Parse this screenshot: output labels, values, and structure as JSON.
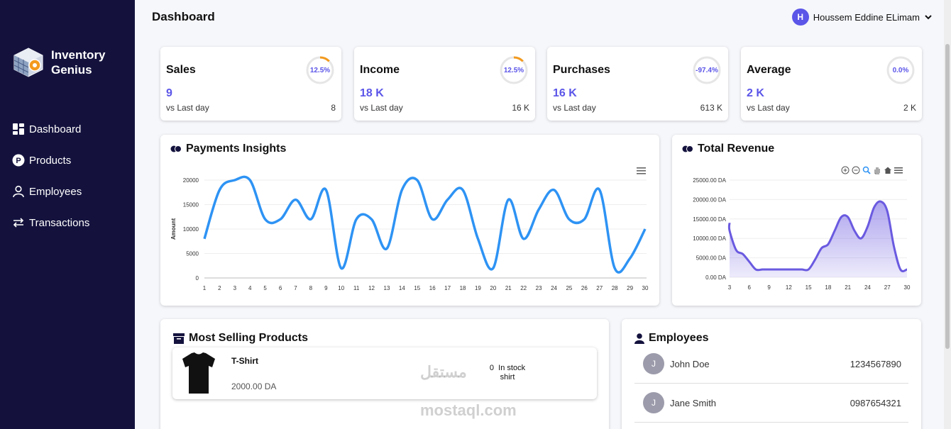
{
  "sidebar": {
    "brand": "Inventory Genius",
    "items": [
      {
        "label": "Dashboard",
        "icon": "grid-icon"
      },
      {
        "label": "Products",
        "icon": "p-circle-icon"
      },
      {
        "label": "Employees",
        "icon": "user-icon"
      },
      {
        "label": "Transactions",
        "icon": "swap-icon"
      }
    ]
  },
  "header": {
    "title": "Dashboard",
    "user_initial": "H",
    "user_name": "Houssem Eddine ELimam"
  },
  "stats": [
    {
      "name": "Sales",
      "value": "9",
      "vs": "vs Last day",
      "prev": "8",
      "pct": "12.5%",
      "progress": 0.125
    },
    {
      "name": "Income",
      "value": "18 K",
      "vs": "vs Last day",
      "prev": "16 K",
      "pct": "12.5%",
      "progress": 0.125
    },
    {
      "name": "Purchases",
      "value": "16 K",
      "vs": "vs Last day",
      "prev": "613 K",
      "pct": "-97.4%",
      "progress": 0
    },
    {
      "name": "Average",
      "value": "2 K",
      "vs": "vs Last day",
      "prev": "2 K",
      "pct": "0.0%",
      "progress": 0
    }
  ],
  "payments": {
    "title": "Payments Insights"
  },
  "revenue": {
    "title": "Total Revenue"
  },
  "chart_data": [
    {
      "type": "line",
      "title": "Payments Insights",
      "ylabel": "Amount",
      "xlabel": "",
      "ylim": [
        0,
        20000
      ],
      "yticks": [
        "0",
        "5000",
        "10000",
        "15000",
        "20000"
      ],
      "x": [
        "1",
        "2",
        "3",
        "4",
        "5",
        "6",
        "7",
        "8",
        "9",
        "10",
        "11",
        "12",
        "13",
        "14",
        "15",
        "16",
        "17",
        "18",
        "19",
        "20",
        "21",
        "22",
        "23",
        "24",
        "25",
        "26",
        "27",
        "28",
        "29",
        "30"
      ],
      "values": [
        8000,
        18000,
        20000,
        20000,
        12000,
        12000,
        16000,
        12000,
        18000,
        2000,
        12000,
        12000,
        6000,
        18000,
        20000,
        12000,
        16000,
        18000,
        8000,
        2000,
        16000,
        8000,
        14000,
        18000,
        12000,
        12000,
        18000,
        2000,
        4000,
        10000
      ],
      "color": "#2e93f4",
      "grid": true
    },
    {
      "type": "area",
      "title": "Total Revenue",
      "ylim": [
        0,
        25000
      ],
      "yticks": [
        "0.00 DA",
        "5000.00 DA",
        "10000.00 DA",
        "15000.00 DA",
        "20000.00 DA",
        "25000.00 DA"
      ],
      "xticks": [
        "3",
        "6",
        "9",
        "12",
        "15",
        "18",
        "21",
        "24",
        "27",
        "30"
      ],
      "x": [
        2,
        3,
        4,
        5,
        6,
        7,
        8,
        9,
        10,
        11,
        12,
        13,
        14,
        15,
        16,
        17,
        18,
        19,
        20,
        21,
        22,
        23,
        24,
        25,
        26,
        27,
        28,
        29,
        30
      ],
      "values": [
        14000,
        12000,
        7000,
        6000,
        4000,
        2000,
        2000,
        2000,
        2000,
        2000,
        2000,
        2000,
        2000,
        2000,
        4500,
        7500,
        8500,
        12000,
        15500,
        15500,
        12000,
        10000,
        13000,
        18000,
        19500,
        17000,
        8000,
        2000,
        2000
      ],
      "color": "#6a5ae0",
      "grid": true
    }
  ],
  "most_selling": {
    "title": "Most Selling Products",
    "items": [
      {
        "name": "T-Shirt",
        "price": "2000.00 DA",
        "stock_count": "0",
        "stock_label": "In stock",
        "stock_label2": "shirt"
      }
    ]
  },
  "employees": {
    "title": "Employees",
    "rows": [
      {
        "initial": "J",
        "name": "John Doe",
        "phone": "1234567890"
      },
      {
        "initial": "J",
        "name": "Jane Smith",
        "phone": "0987654321"
      }
    ]
  },
  "watermark": {
    "arabic": "مستقل",
    "latin": "mostaql.com"
  }
}
